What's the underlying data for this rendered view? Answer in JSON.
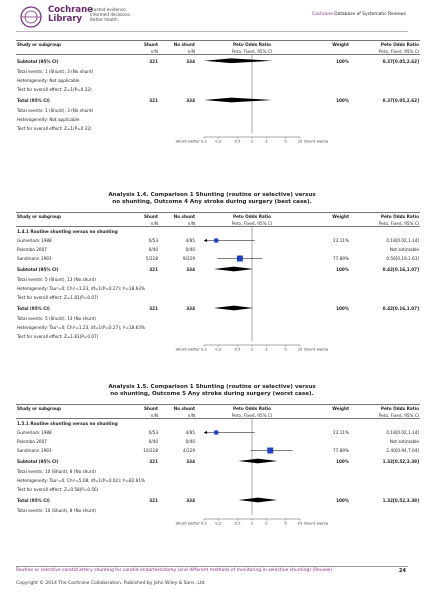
{
  "header": {
    "logo_line1": "Cochrane",
    "logo_line2": "Library",
    "tagline": [
      "Trusted evidence.",
      "Informed decisions.",
      "Better health."
    ],
    "brand": "Cochrane",
    "db_name": "Database of Systematic Reviews"
  },
  "col_headers": {
    "study": "Study or subgroup",
    "shunt": "Shunt",
    "no_shunt": "No shunt",
    "peto": "Peto Odds Ratio",
    "weight": "Weight",
    "peto2": "Peto Odds Ratio",
    "nN": "n/N",
    "method": "Peto, Fixed, 95% CI"
  },
  "block1": {
    "rows": [
      {
        "study": "Subtotal (95% CI)",
        "a": "321",
        "b": "334",
        "w": "100%",
        "or": "0.37[0.05,2.62]",
        "bold": true
      },
      {
        "study": "Total events: 1 (Shunt), 3 (No shunt)"
      },
      {
        "study": "Heterogeneity: Not applicable"
      },
      {
        "study": "Test for overall effect: Z=1(P=0.32)"
      },
      {
        "study": "Total (95% CI)",
        "a": "321",
        "b": "334",
        "w": "100%",
        "or": "0.37[0.05,2.62]",
        "bold": true
      },
      {
        "study": "Total events: 1 (Shunt), 3 (No shunt)"
      },
      {
        "study": "Heterogeneity: Not applicable"
      },
      {
        "study": "Test for overall effect: Z=1(P=0.32)"
      }
    ],
    "axis": {
      "left": "Shunt better",
      "right": "Shunt worse",
      "ticks": [
        "0.1",
        "0.2",
        "0.5",
        "1",
        "2",
        "5",
        "10"
      ]
    }
  },
  "analysis4": {
    "title_line1": "Analysis 1.4.   Comparison 1 Shunting (routine or selective) versus",
    "title_line2": "no shunting, Outcome 4 Any stroke during surgery (best case).",
    "subgroup": "1.4.1 Routine shunting versus no shunting",
    "studies": [
      {
        "study": "Gumerlock 1988",
        "a": "0/53",
        "b": "4/85",
        "w": "22.11%",
        "or": "0.18[0.02,1.14]"
      },
      {
        "study": "Palombo 2007",
        "a": "0/40",
        "b": "0/40",
        "w": "",
        "or": "Not estimable"
      },
      {
        "study": "Sandmann 1993",
        "a": "5/228",
        "b": "9/229",
        "w": "77.89%",
        "or": "0.56[0.19,1.63]"
      }
    ],
    "rows": [
      {
        "study": "Subtotal (95% CI)",
        "a": "321",
        "b": "334",
        "w": "100%",
        "or": "0.42[0.16,1.07]",
        "bold": true
      },
      {
        "study": "Total events: 5 (Shunt), 13 (No shunt)"
      },
      {
        "study": "Heterogeneity: Tau²=0; Chi²=1.23, df=1(P=0.27); I²=18.63%"
      },
      {
        "study": "Test for overall effect: Z=1.81(P=0.07)"
      },
      {
        "study": "Total (95% CI)",
        "a": "321",
        "b": "334",
        "w": "100%",
        "or": "0.42[0.16,1.07]",
        "bold": true
      },
      {
        "study": "Total events: 5 (Shunt), 13 (No shunt)"
      },
      {
        "study": "Heterogeneity: Tau²=0; Chi²=1.23, df=1(P=0.27); I²=18.63%"
      },
      {
        "study": "Test for overall effect: Z=1.81(P=0.07)"
      }
    ]
  },
  "analysis5": {
    "title_line1": "Analysis 1.5.   Comparison 1 Shunting (routine or selective) versus",
    "title_line2": "no shunting, Outcome 5 Any stroke during surgery (worst case).",
    "subgroup": "1.5.1 Routine shunting versus no shunting",
    "studies": [
      {
        "study": "Gumerlock 1988",
        "a": "0/53",
        "b": "4/85",
        "w": "22.11%",
        "or": "0.18[0.02,1.14]"
      },
      {
        "study": "Palombo 2007",
        "a": "0/40",
        "b": "0/40",
        "w": "",
        "or": "Not estimable"
      },
      {
        "study": "Sandmann 1993",
        "a": "10/228",
        "b": "4/229",
        "w": "77.89%",
        "or": "2.40[0.94,7.04]"
      }
    ],
    "rows": [
      {
        "study": "Subtotal (95% CI)",
        "a": "321",
        "b": "334",
        "w": "100%",
        "or": "1.32[0.52,3.39]",
        "bold": true
      },
      {
        "study": "Total events: 10 (Shunt), 8 (No shunt)"
      },
      {
        "study": "Heterogeneity: Tau²=0; Chi²=5.08, df=1(P=0.02); I²=82.61%"
      },
      {
        "study": "Test for overall effect: Z=0.58(P=0.56)"
      },
      {
        "study": "Total (95% CI)",
        "a": "321",
        "b": "334",
        "w": "100%",
        "or": "1.32[0.52,3.39]",
        "bold": true
      },
      {
        "study": "Total events: 10 (Shunt), 8 (No shunt)"
      }
    ]
  },
  "footer": {
    "title": "Routine or selective carotid artery shunting for carotid endarterectomy (and different methods of monitoring in selective shunting) (Review)",
    "copyright": "Copyright © 2014 The Cochrane Collaboration. Published by John Wiley & Sons, Ltd.",
    "page": "24"
  },
  "colors": {
    "accent": "#8a2a8a",
    "marker": "#1f3fbf"
  }
}
